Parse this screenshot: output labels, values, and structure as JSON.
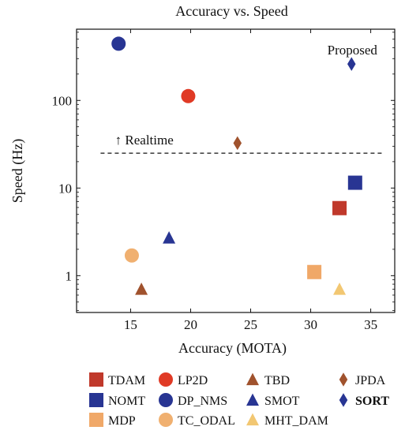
{
  "chart_data": {
    "type": "scatter",
    "title": "Accuracy vs. Speed",
    "xlabel": "Accuracy (MOTA)",
    "ylabel": "Speed (Hz)",
    "xlim": [
      10.5,
      37
    ],
    "ylim": [
      0.38,
      650
    ],
    "yscale": "log",
    "grid": false,
    "x_ticks": [
      15,
      20,
      25,
      30,
      35
    ],
    "x_tick_labels": [
      "15",
      "20",
      "25",
      "30",
      "35"
    ],
    "y_ticks": [
      1,
      10,
      100
    ],
    "y_tick_labels": [
      "1",
      "10",
      "100"
    ],
    "legend_position": "bottom",
    "series": [
      {
        "name": "TDAM",
        "marker": "square",
        "color": "#c0392b",
        "points": [
          [
            32.4,
            5.9
          ]
        ]
      },
      {
        "name": "LP2D",
        "marker": "circle",
        "color": "#e03a25",
        "points": [
          [
            19.8,
            112
          ]
        ]
      },
      {
        "name": "TBD",
        "marker": "triangle",
        "color": "#a0522d",
        "points": [
          [
            15.9,
            0.7
          ]
        ]
      },
      {
        "name": "JPDA",
        "marker": "diamond",
        "color": "#a0522d",
        "points": [
          [
            23.9,
            32.6
          ]
        ]
      },
      {
        "name": "NOMT",
        "marker": "square",
        "color": "#283593",
        "points": [
          [
            33.7,
            11.5
          ]
        ]
      },
      {
        "name": "DP_NMS",
        "marker": "circle",
        "color": "#283593",
        "points": [
          [
            14.0,
            444
          ]
        ]
      },
      {
        "name": "SMOT",
        "marker": "triangle",
        "color": "#283593",
        "points": [
          [
            18.2,
            2.7
          ]
        ]
      },
      {
        "name": "SORT",
        "marker": "diamond",
        "color": "#283593",
        "bold": true,
        "points": [
          [
            33.4,
            260
          ]
        ]
      },
      {
        "name": "MDP",
        "marker": "square",
        "color": "#f0a868",
        "points": [
          [
            30.3,
            1.1
          ]
        ]
      },
      {
        "name": "TC_ODAL",
        "marker": "circle",
        "color": "#f0b070",
        "points": [
          [
            15.1,
            1.7
          ]
        ]
      },
      {
        "name": "MHT_DAM",
        "marker": "triangle",
        "color": "#f2c772",
        "points": [
          [
            32.4,
            0.7
          ]
        ]
      }
    ],
    "annotations": [
      {
        "text": "Proposed",
        "x": 33.4,
        "y": 260
      },
      {
        "text": "↑ Realtime",
        "x": 13.7,
        "y": 25
      }
    ],
    "reference_line": {
      "y": 25,
      "x_from": 12.5,
      "x_to": 36,
      "style": "dashed"
    }
  }
}
